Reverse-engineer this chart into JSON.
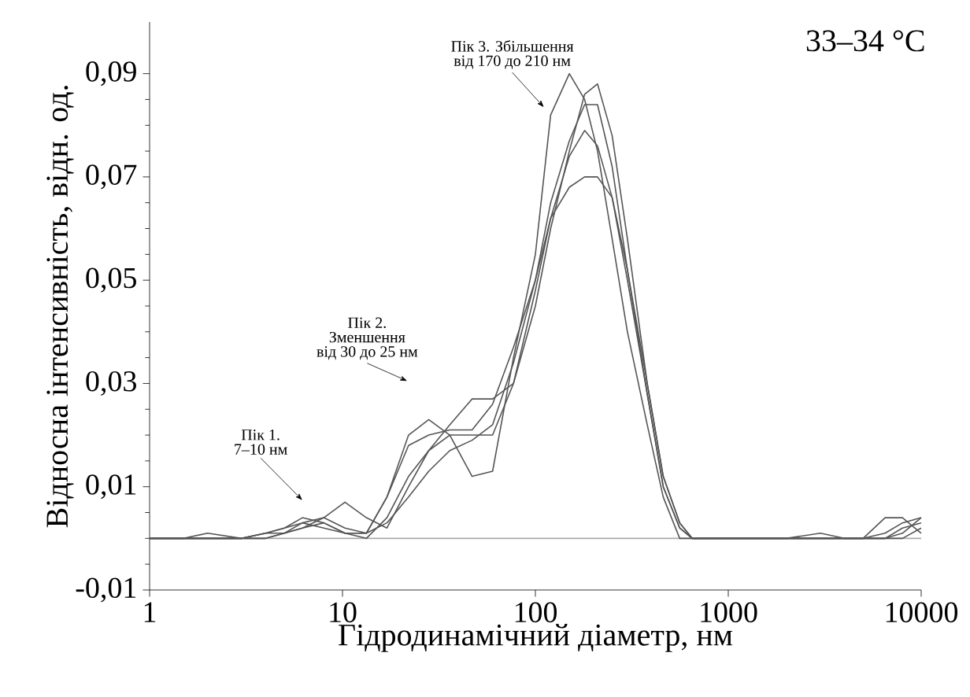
{
  "chart_data": {
    "type": "line",
    "xlabel": "Гідродинамічний діаметр, нм",
    "ylabel": "Відносна інтенсивність, відн. од.",
    "log": "x",
    "xlim": [
      1,
      10000
    ],
    "ylim": [
      -0.01,
      0.1
    ],
    "xticks": [
      1,
      10,
      100,
      1000,
      10000
    ],
    "yticks": [
      {
        "value": -0.01,
        "label": "-0,01"
      },
      {
        "value": 0.01,
        "label": "0,01"
      },
      {
        "value": 0.03,
        "label": "0,03"
      },
      {
        "value": 0.05,
        "label": "0,05"
      },
      {
        "value": 0.07,
        "label": "0,07"
      },
      {
        "value": 0.09,
        "label": "0,09"
      }
    ],
    "x": [
      1,
      1.5,
      2,
      3,
      4,
      5,
      6.2,
      8,
      10.3,
      13.3,
      17,
      22,
      28,
      36,
      47,
      60,
      77,
      100,
      120,
      150,
      180,
      210,
      250,
      300,
      380,
      460,
      560,
      650,
      1000,
      2000,
      3000,
      4000,
      5000,
      6500,
      8000,
      10000
    ],
    "series": [
      {
        "color": "#555555",
        "values": [
          0,
          0,
          0.001,
          0,
          0.001,
          0.002,
          0.003,
          0.002,
          0.001,
          0.001,
          0.008,
          0.02,
          0.023,
          0.02,
          0.012,
          0.013,
          0.035,
          0.055,
          0.082,
          0.09,
          0.085,
          0.075,
          0.058,
          0.04,
          0.022,
          0.008,
          0,
          0,
          0,
          0,
          0.001,
          0,
          0,
          0.004,
          0.004,
          0.001
        ]
      },
      {
        "color": "#555555",
        "values": [
          0,
          0,
          0,
          0,
          0.001,
          0.001,
          0.002,
          0.004,
          0.007,
          0.004,
          0.002,
          0.01,
          0.017,
          0.022,
          0.027,
          0.027,
          0.03,
          0.045,
          0.06,
          0.075,
          0.086,
          0.088,
          0.078,
          0.058,
          0.03,
          0.012,
          0.003,
          0,
          0,
          0,
          0,
          0,
          0,
          0.001,
          0.003,
          0.004
        ]
      },
      {
        "color": "#555555",
        "values": [
          0,
          0,
          0,
          0,
          0,
          0.001,
          0.002,
          0.003,
          0.001,
          0.001,
          0.008,
          0.018,
          0.02,
          0.021,
          0.021,
          0.026,
          0.037,
          0.05,
          0.065,
          0.077,
          0.084,
          0.084,
          0.072,
          0.052,
          0.028,
          0.01,
          0.002,
          0,
          0,
          0,
          0,
          0,
          0,
          0,
          0.002,
          0.003
        ]
      },
      {
        "color": "#555555",
        "values": [
          0,
          0,
          0,
          0,
          0.001,
          0.002,
          0.004,
          0.003,
          0.001,
          0,
          0.004,
          0.012,
          0.017,
          0.02,
          0.02,
          0.02,
          0.03,
          0.048,
          0.062,
          0.074,
          0.079,
          0.076,
          0.066,
          0.05,
          0.028,
          0.01,
          0.002,
          0,
          0,
          0,
          0,
          0,
          0,
          0,
          0.001,
          0.004
        ]
      },
      {
        "color": "#555555",
        "values": [
          0,
          0,
          0,
          0,
          0,
          0.001,
          0.003,
          0.004,
          0.002,
          0.001,
          0.003,
          0.008,
          0.013,
          0.017,
          0.019,
          0.022,
          0.034,
          0.05,
          0.062,
          0.068,
          0.07,
          0.07,
          0.066,
          0.052,
          0.03,
          0.012,
          0.003,
          0,
          0,
          0,
          0,
          0,
          0,
          0,
          0,
          0.002
        ]
      }
    ],
    "ref_lines": [
      {
        "axis": "y",
        "value": 0,
        "color": "#aaaaaa"
      }
    ],
    "annotations": [
      "Пік 1.",
      "7–10 нм",
      "Пік 2.",
      "Зменшення",
      "від 30 до 25 нм",
      "Пік 3. Збільшення",
      "від 170 до 210 нм",
      "33–34 °C"
    ]
  }
}
